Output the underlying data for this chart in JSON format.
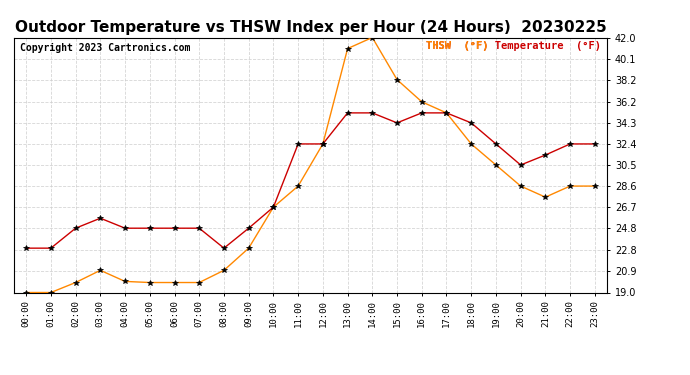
{
  "title": "Outdoor Temperature vs THSW Index per Hour (24 Hours)  20230225",
  "copyright": "Copyright 2023 Cartronics.com",
  "hours": [
    "00:00",
    "01:00",
    "02:00",
    "03:00",
    "04:00",
    "05:00",
    "06:00",
    "07:00",
    "08:00",
    "09:00",
    "10:00",
    "11:00",
    "12:00",
    "13:00",
    "14:00",
    "15:00",
    "16:00",
    "17:00",
    "18:00",
    "19:00",
    "20:00",
    "21:00",
    "22:00",
    "23:00"
  ],
  "temperature": [
    23.0,
    23.0,
    24.8,
    25.7,
    24.8,
    24.8,
    24.8,
    24.8,
    23.0,
    24.8,
    26.7,
    32.4,
    32.4,
    35.2,
    35.2,
    34.3,
    35.2,
    35.2,
    34.3,
    32.4,
    30.5,
    31.4,
    32.4,
    32.4
  ],
  "thsw": [
    19.0,
    19.0,
    19.9,
    21.0,
    20.0,
    19.9,
    19.9,
    19.9,
    21.0,
    23.0,
    26.7,
    28.6,
    32.4,
    41.0,
    42.0,
    38.2,
    36.2,
    35.2,
    32.4,
    30.5,
    28.6,
    27.6,
    28.6,
    28.6
  ],
  "temp_color": "#cc0000",
  "thsw_color": "#ff8800",
  "ylim": [
    19.0,
    42.0
  ],
  "yticks": [
    19.0,
    20.9,
    22.8,
    24.8,
    26.7,
    28.6,
    30.5,
    32.4,
    34.3,
    36.2,
    38.2,
    40.1,
    42.0
  ],
  "background_color": "#ffffff",
  "grid_color": "#cccccc",
  "title_fontsize": 11,
  "copyright_fontsize": 7,
  "legend_thsw": "THSW  (°F)",
  "legend_temp": "Temperature  (°F)"
}
